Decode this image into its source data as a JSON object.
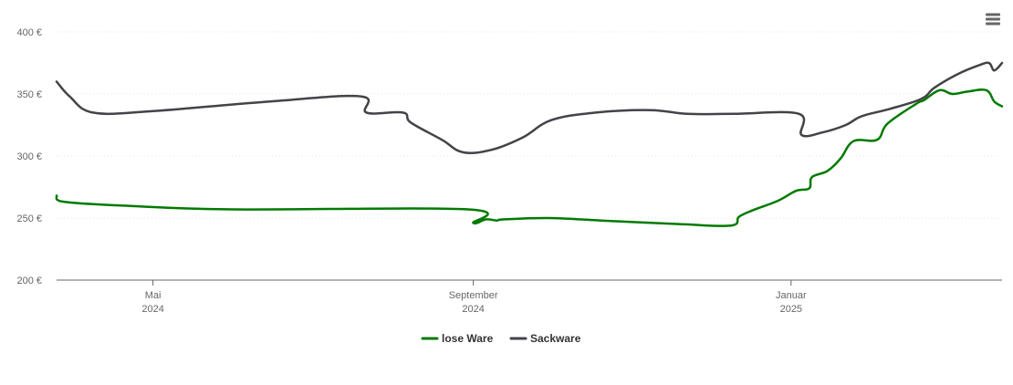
{
  "chart_data": {
    "type": "line",
    "title": "",
    "xlabel": "",
    "ylabel": "",
    "x_range": [
      "2024-03-25",
      "2025-03-23"
    ],
    "ylim": [
      200,
      400
    ],
    "y_ticks": [
      {
        "value": 400,
        "label": "400 €"
      },
      {
        "value": 350,
        "label": "350 €"
      },
      {
        "value": 300,
        "label": "300 €"
      },
      {
        "value": 250,
        "label": "250 €"
      },
      {
        "value": 200,
        "label": "200 €"
      }
    ],
    "x_ticks": [
      {
        "date": "2024-05-01",
        "line1": "Mai",
        "line2": "2024"
      },
      {
        "date": "2024-09-01",
        "line1": "September",
        "line2": "2024"
      },
      {
        "date": "2025-01-01",
        "line1": "Januar",
        "line2": "2025"
      }
    ],
    "grid": true,
    "legend_position": "bottom-center",
    "series": [
      {
        "name": "lose Ware",
        "color": "#007a00",
        "points": [
          [
            "2024-03-25",
            268
          ],
          [
            "2024-03-28",
            263
          ],
          [
            "2024-04-20",
            260
          ],
          [
            "2024-06-01",
            257
          ],
          [
            "2024-08-30",
            257
          ],
          [
            "2024-09-01",
            246
          ],
          [
            "2024-09-06",
            249
          ],
          [
            "2024-09-10",
            248
          ],
          [
            "2024-09-13",
            249
          ],
          [
            "2024-09-30",
            250
          ],
          [
            "2024-10-20",
            248
          ],
          [
            "2024-11-20",
            245
          ],
          [
            "2024-12-09",
            244
          ],
          [
            "2024-12-12",
            251
          ],
          [
            "2024-12-17",
            256
          ],
          [
            "2024-12-27",
            264
          ],
          [
            "2025-01-03",
            272
          ],
          [
            "2025-01-08",
            274
          ],
          [
            "2025-01-09",
            283
          ],
          [
            "2025-01-15",
            288
          ],
          [
            "2025-01-20",
            298
          ],
          [
            "2025-01-25",
            312
          ],
          [
            "2025-02-03",
            313
          ],
          [
            "2025-02-07",
            326
          ],
          [
            "2025-02-18",
            342
          ],
          [
            "2025-02-21",
            345
          ],
          [
            "2025-02-27",
            353
          ],
          [
            "2025-03-04",
            350
          ],
          [
            "2025-03-10",
            352
          ],
          [
            "2025-03-17",
            353
          ],
          [
            "2025-03-20",
            344
          ],
          [
            "2025-03-23",
            340
          ]
        ]
      },
      {
        "name": "Sackware",
        "color": "#434348",
        "points": [
          [
            "2024-03-25",
            360
          ],
          [
            "2024-03-30",
            348
          ],
          [
            "2024-04-08",
            335
          ],
          [
            "2024-04-30",
            336
          ],
          [
            "2024-06-15",
            344
          ],
          [
            "2024-07-20",
            348
          ],
          [
            "2024-07-22",
            335
          ],
          [
            "2024-08-05",
            335
          ],
          [
            "2024-08-08",
            327
          ],
          [
            "2024-08-20",
            313
          ],
          [
            "2024-08-28",
            303
          ],
          [
            "2024-09-08",
            305
          ],
          [
            "2024-09-20",
            315
          ],
          [
            "2024-10-01",
            329
          ],
          [
            "2024-10-18",
            335
          ],
          [
            "2024-11-08",
            337
          ],
          [
            "2024-11-22",
            334
          ],
          [
            "2024-12-10",
            334
          ],
          [
            "2025-01-04",
            334
          ],
          [
            "2025-01-05",
            317
          ],
          [
            "2025-01-13",
            319
          ],
          [
            "2025-01-22",
            325
          ],
          [
            "2025-01-28",
            332
          ],
          [
            "2025-02-08",
            338
          ],
          [
            "2025-02-20",
            346
          ],
          [
            "2025-02-25",
            355
          ],
          [
            "2025-03-06",
            366
          ],
          [
            "2025-03-14",
            373
          ],
          [
            "2025-03-18",
            375
          ],
          [
            "2025-03-20",
            369
          ],
          [
            "2025-03-23",
            375
          ]
        ]
      }
    ]
  },
  "menu": {
    "icon": "hamburger-menu-icon",
    "color": "#666666"
  }
}
